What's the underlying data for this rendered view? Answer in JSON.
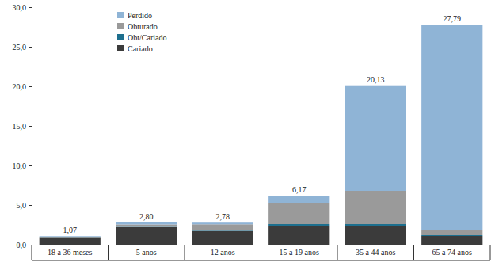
{
  "chart_data": {
    "type": "bar",
    "stacked": true,
    "legend": "upper left",
    "categories": [
      "18 a 36 meses",
      "5 anos",
      "12 anos",
      "15 a 19 anos",
      "35 a 44 anos",
      "65 a 74 anos"
    ],
    "series": [
      {
        "name": "Cariado",
        "color": "#3b3b3b",
        "values": [
          0.95,
          2.2,
          1.7,
          2.4,
          2.3,
          1.1
        ]
      },
      {
        "name": "Obt/Cariado",
        "color": "#1d6f8e",
        "values": [
          0.02,
          0.05,
          0.07,
          0.2,
          0.3,
          0.1
        ]
      },
      {
        "name": "Obturado",
        "color": "#9a9a9a",
        "values": [
          0.03,
          0.3,
          0.8,
          2.6,
          4.2,
          0.6
        ]
      },
      {
        "name": "Perdido",
        "color": "#8fb4d6",
        "values": [
          0.07,
          0.25,
          0.21,
          0.97,
          13.33,
          25.99
        ]
      }
    ],
    "totals": [
      1.07,
      2.8,
      2.78,
      6.17,
      20.13,
      27.79
    ],
    "total_labels": [
      "1,07",
      "2,80",
      "2,78",
      "6,17",
      "20,13",
      "27,79"
    ],
    "ylim": [
      0,
      30
    ],
    "yticks": [
      {
        "value": 0,
        "label": "0,0"
      },
      {
        "value": 5,
        "label": "5,0"
      },
      {
        "value": 10,
        "label": "10,0"
      },
      {
        "value": 15,
        "label": "15,0"
      },
      {
        "value": 20,
        "label": "20,0"
      },
      {
        "value": 25,
        "label": "25,0"
      },
      {
        "value": 30,
        "label": "30,0"
      }
    ]
  }
}
